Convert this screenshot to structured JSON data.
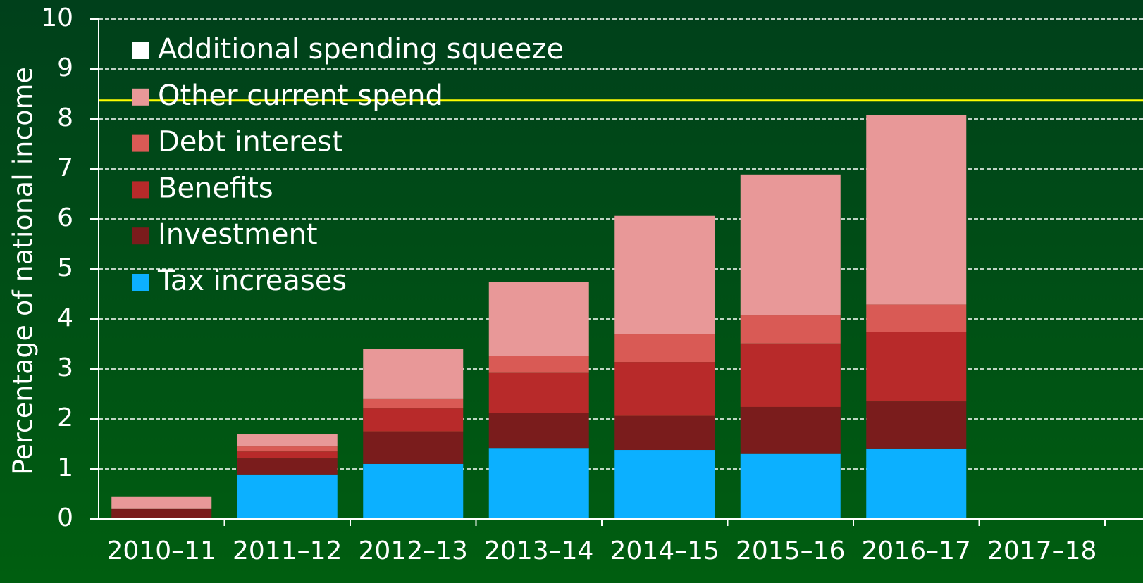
{
  "chart_data": {
    "type": "stacked_bar",
    "y_label": "Percentage of national income",
    "categories": [
      "2010–11",
      "2011–12",
      "2012–13",
      "2013–14",
      "2014–15",
      "2015–16",
      "2016–17",
      "2017–18"
    ],
    "series": [
      {
        "name": "Tax increases",
        "color": "#0cb0ff",
        "values": [
          0,
          0.89,
          1.1,
          1.42,
          1.38,
          1.3,
          1.41,
          null
        ]
      },
      {
        "name": "Investment",
        "color": "#7a1c1c",
        "values": [
          0.2,
          0.32,
          0.65,
          0.7,
          0.68,
          0.94,
          0.94,
          null
        ]
      },
      {
        "name": "Benefits",
        "color": "#b82a2a",
        "values": [
          0,
          0.14,
          0.46,
          0.8,
          1.08,
          1.27,
          1.39,
          null
        ]
      },
      {
        "name": "Debt interest",
        "color": "#d95a55",
        "values": [
          0,
          0.1,
          0.2,
          0.34,
          0.55,
          0.56,
          0.55,
          null
        ]
      },
      {
        "name": "Other current spend",
        "color": "#e89898",
        "values": [
          0.24,
          0.24,
          0.99,
          1.48,
          2.37,
          2.82,
          3.79,
          null
        ]
      },
      {
        "name": "Additional spending squeeze",
        "color": "#ffffff",
        "values": [
          null,
          null,
          null,
          null,
          null,
          null,
          null,
          null
        ]
      }
    ],
    "ylim": [
      0,
      10
    ],
    "yticks": [
      0,
      1,
      2,
      3,
      4,
      5,
      6,
      7,
      8,
      9,
      10
    ],
    "grid": true,
    "hline": {
      "value": 8.37,
      "color": "#ffff00"
    }
  }
}
